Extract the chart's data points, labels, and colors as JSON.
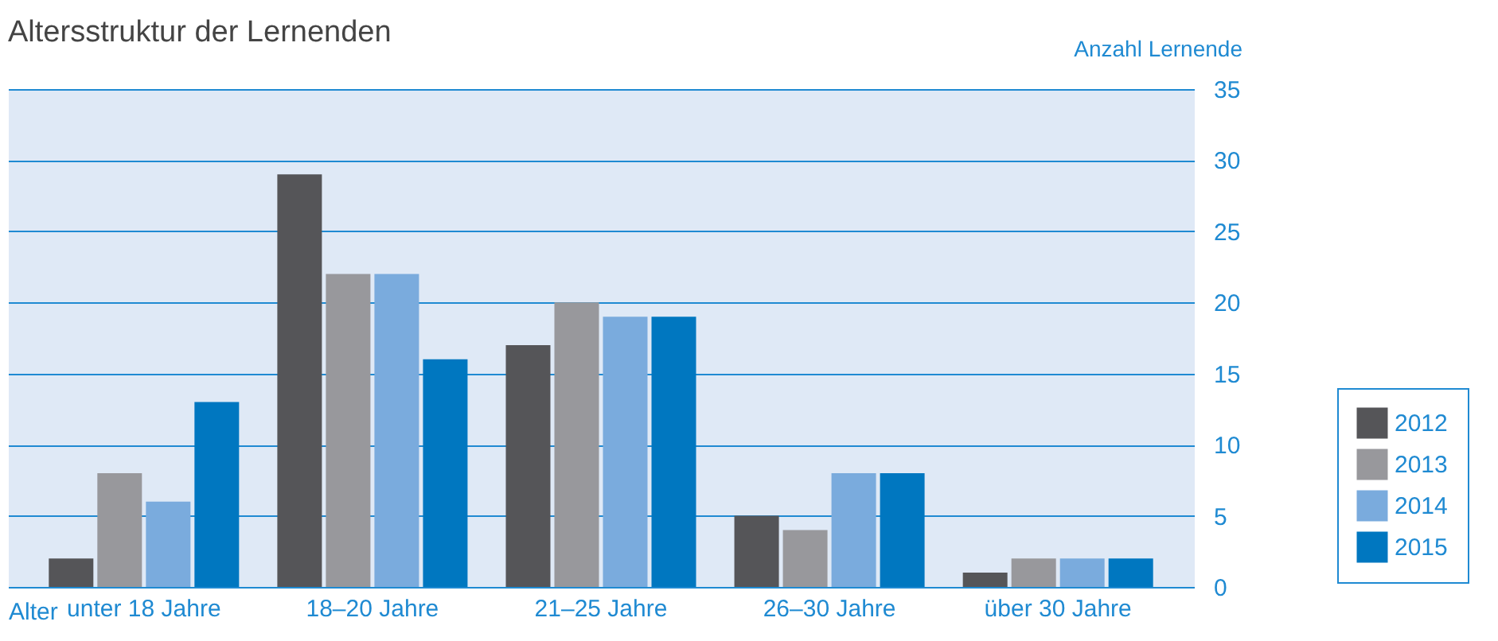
{
  "chart_data": {
    "type": "bar",
    "title": "Altersstruktur der Lernenden",
    "xlabel": "Alter",
    "ylabel": "Anzahl Lernende",
    "categories": [
      "unter 18 Jahre",
      "18–20 Jahre",
      "21–25 Jahre",
      "26–30 Jahre",
      "über 30 Jahre"
    ],
    "series": [
      {
        "name": "2012",
        "color": "#555558",
        "values": [
          2,
          29,
          17,
          5,
          1
        ]
      },
      {
        "name": "2013",
        "color": "#98989c",
        "values": [
          8,
          22,
          20,
          4,
          2
        ]
      },
      {
        "name": "2014",
        "color": "#7aabdd",
        "values": [
          6,
          22,
          19,
          8,
          2
        ]
      },
      {
        "name": "2015",
        "color": "#0077c0",
        "values": [
          13,
          16,
          19,
          8,
          2
        ]
      }
    ],
    "ylim": [
      0,
      35
    ],
    "yticks": [
      0,
      5,
      10,
      15,
      20,
      25,
      30,
      35
    ],
    "grid": "y",
    "legend": "bottom right"
  }
}
